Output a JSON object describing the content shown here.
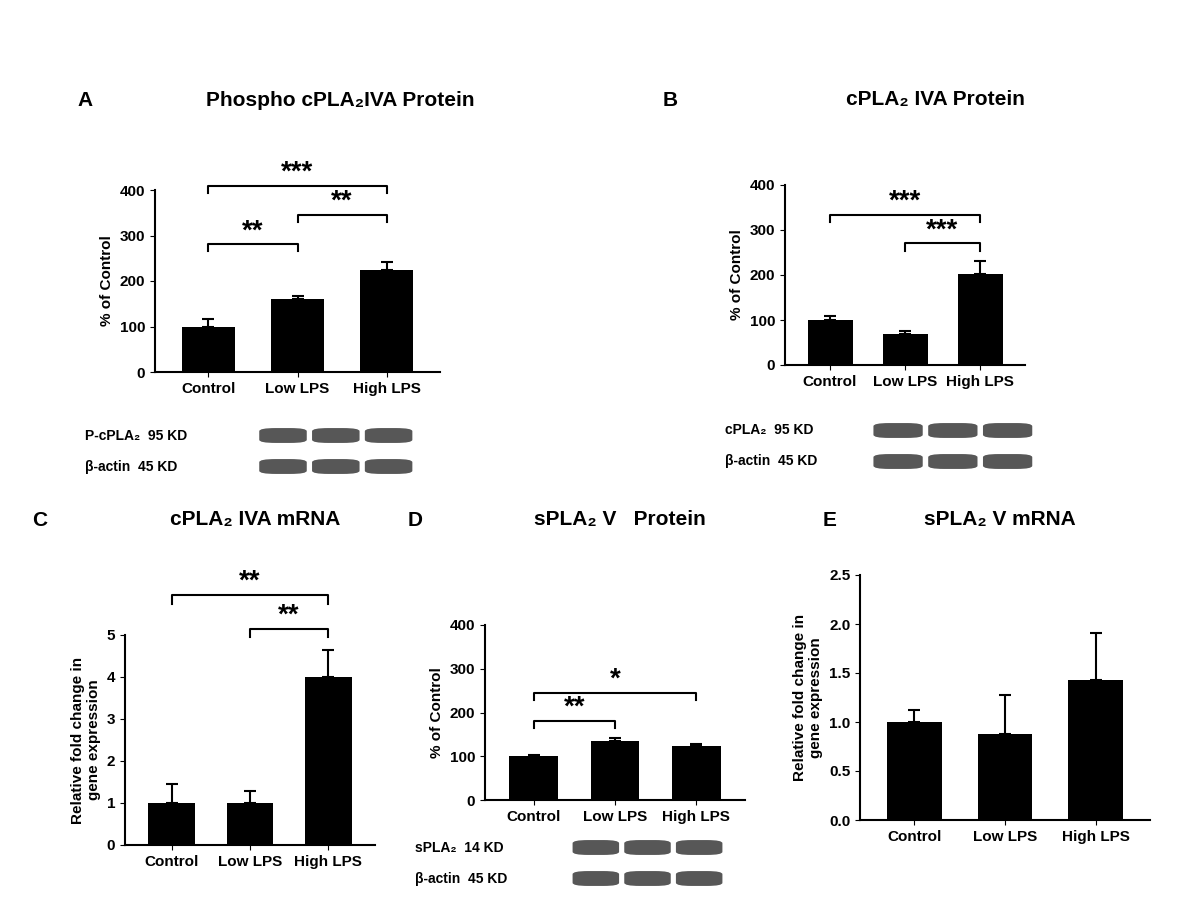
{
  "chart_data": [
    {
      "type": "bar",
      "panel": "A",
      "title": "Phospho cPLA₂IVA Protein",
      "ylabel": "% of Control",
      "categories": [
        "Control",
        "Low LPS",
        "High LPS"
      ],
      "values": [
        100,
        160,
        224
      ],
      "errors": [
        17,
        8,
        17
      ],
      "color": "#000000",
      "ylim": [
        0,
        400
      ],
      "yticks": [
        0,
        100,
        200,
        300,
        400
      ],
      "annotations": [
        {
          "text": "**",
          "between": [
            "Control",
            "Low LPS"
          ]
        },
        {
          "text": "***",
          "between": [
            "Control",
            "High LPS"
          ]
        },
        {
          "text": "**",
          "between": [
            "Low LPS",
            "High LPS"
          ]
        }
      ],
      "blot_labels": [
        "P-cPLA₂  95 KD",
        "β-actin  45 KD"
      ]
    },
    {
      "type": "bar",
      "panel": "B",
      "title": "cPLA₂ IVA Protein",
      "ylabel": "% of Control",
      "categories": [
        "Control",
        "Low LPS",
        "High LPS"
      ],
      "values": [
        100,
        68,
        202
      ],
      "errors": [
        10,
        8,
        28
      ],
      "color": "#000000",
      "ylim": [
        0,
        400
      ],
      "yticks": [
        0,
        100,
        200,
        300,
        400
      ],
      "annotations": [
        {
          "text": "***",
          "between": [
            "Control",
            "High LPS"
          ]
        },
        {
          "text": "***",
          "between": [
            "Low LPS",
            "High LPS"
          ]
        }
      ],
      "blot_labels": [
        "cPLA₂  95 KD",
        "β-actin  45 KD"
      ]
    },
    {
      "type": "bar",
      "panel": "C",
      "title": "cPLA₂ IVA mRNA",
      "ylabel": "Relative fold change in\ngene expression",
      "categories": [
        "Control",
        "Low LPS",
        "High LPS"
      ],
      "values": [
        1.0,
        1.0,
        4.0
      ],
      "errors": [
        0.45,
        0.28,
        0.65
      ],
      "color": "#000000",
      "ylim": [
        0,
        5
      ],
      "yticks": [
        0,
        1,
        2,
        3,
        4,
        5
      ],
      "annotations": [
        {
          "text": "**",
          "between": [
            "Control",
            "High LPS"
          ]
        },
        {
          "text": "**",
          "between": [
            "Low LPS",
            "High LPS"
          ]
        }
      ]
    },
    {
      "type": "bar",
      "panel": "D",
      "title": "sPLA₂ V   Protein",
      "ylabel": "% of Control",
      "categories": [
        "Control",
        "Low LPS",
        "High LPS"
      ],
      "values": [
        100,
        134,
        123
      ],
      "errors": [
        3,
        7,
        6
      ],
      "color": "#000000",
      "ylim": [
        0,
        400
      ],
      "yticks": [
        0,
        100,
        200,
        300,
        400
      ],
      "annotations": [
        {
          "text": "**",
          "between": [
            "Control",
            "Low LPS"
          ]
        },
        {
          "text": "*",
          "between": [
            "Control",
            "High LPS"
          ]
        }
      ],
      "blot_labels": [
        "sPLA₂  14 KD",
        "β-actin  45 KD"
      ]
    },
    {
      "type": "bar",
      "panel": "E",
      "title": "sPLA₂ V mRNA",
      "ylabel": "Relative fold change in\ngene expression",
      "categories": [
        "Control",
        "Low LPS",
        "High LPS"
      ],
      "values": [
        1.0,
        0.88,
        1.43
      ],
      "errors": [
        0.12,
        0.4,
        0.48
      ],
      "color": "#000000",
      "ylim": [
        0,
        2.5
      ],
      "yticks": [
        {
          "value": 0,
          "label": "0.0"
        },
        {
          "value": 0.5,
          "label": "0.5"
        },
        {
          "value": 1,
          "label": "1.0"
        },
        {
          "value": 1.5,
          "label": "1.5"
        },
        {
          "value": 2,
          "label": "2.0"
        },
        {
          "value": 2.5,
          "label": "2.5"
        }
      ],
      "annotations": []
    }
  ]
}
